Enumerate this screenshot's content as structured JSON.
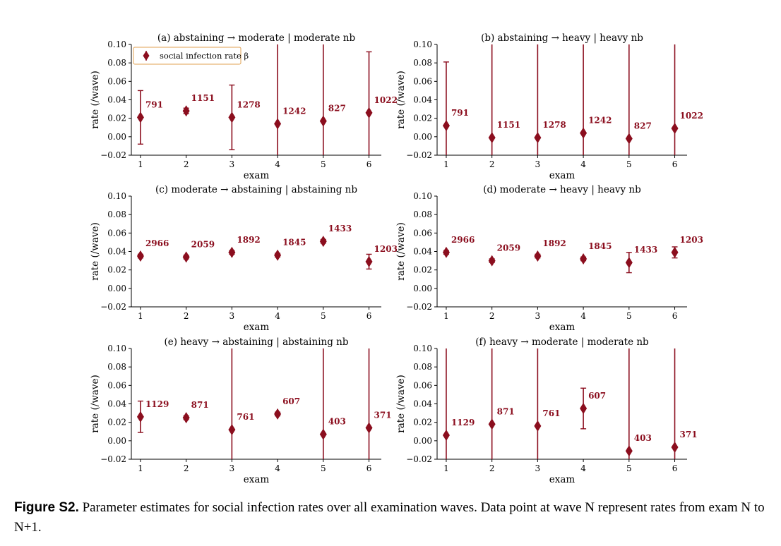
{
  "style": {
    "point_color": "#8b0e1e",
    "legend_border": "#e0a050"
  },
  "legend": {
    "label": "social infection rate β"
  },
  "caption": {
    "label": "Figure S2.",
    "text": "Parameter estimates for social infection rates over all examination waves. Data point at wave N represent rates from exam N to N+1."
  },
  "chart_data": [
    {
      "type": "scatter",
      "title": "(a) abstaining → moderate | moderate nb",
      "xlabel": "exam",
      "ylabel": "rate (/wave)",
      "ylim": [
        -0.02,
        0.1
      ],
      "yticks": [
        "−0.02",
        "0.00",
        "0.02",
        "0.04",
        "0.06",
        "0.08",
        "0.10"
      ],
      "xticks": [
        "1",
        "2",
        "3",
        "4",
        "5",
        "6"
      ],
      "x": [
        1,
        2,
        3,
        4,
        5,
        6
      ],
      "y": [
        0.021,
        0.028,
        0.021,
        0.014,
        0.017,
        0.026
      ],
      "err_low": [
        -0.008,
        0.025,
        -0.014,
        -0.02,
        -0.02,
        -0.02
      ],
      "err_high": [
        0.05,
        0.031,
        0.056,
        0.1,
        0.1,
        0.092
      ],
      "labels": [
        "791",
        "1151",
        "1278",
        "1242",
        "827",
        "1022"
      ],
      "legend": true
    },
    {
      "type": "scatter",
      "title": "(b) abstaining → heavy | heavy nb",
      "xlabel": "exam",
      "ylabel": "rate (/wave)",
      "ylim": [
        -0.02,
        0.1
      ],
      "yticks": [
        "−0.02",
        "0.00",
        "0.02",
        "0.04",
        "0.06",
        "0.08",
        "0.10"
      ],
      "xticks": [
        "1",
        "2",
        "3",
        "4",
        "5",
        "6"
      ],
      "x": [
        1,
        2,
        3,
        4,
        5,
        6
      ],
      "y": [
        0.012,
        -0.001,
        -0.001,
        0.004,
        -0.002,
        0.009
      ],
      "err_low": [
        -0.02,
        -0.02,
        -0.02,
        -0.02,
        -0.02,
        -0.02
      ],
      "err_high": [
        0.081,
        0.1,
        0.1,
        0.1,
        0.1,
        0.1
      ],
      "labels": [
        "791",
        "1151",
        "1278",
        "1242",
        "827",
        "1022"
      ]
    },
    {
      "type": "scatter",
      "title": "(c) moderate → abstaining | abstaining nb",
      "xlabel": "exam",
      "ylabel": "rate (/wave)",
      "ylim": [
        -0.02,
        0.1
      ],
      "yticks": [
        "−0.02",
        "0.00",
        "0.02",
        "0.04",
        "0.06",
        "0.08",
        "0.10"
      ],
      "xticks": [
        "1",
        "2",
        "3",
        "4",
        "5",
        "6"
      ],
      "x": [
        1,
        2,
        3,
        4,
        5,
        6
      ],
      "y": [
        0.035,
        0.034,
        0.039,
        0.036,
        0.051,
        0.029
      ],
      "err_low": [
        0.033,
        0.032,
        0.037,
        0.034,
        0.049,
        0.021
      ],
      "err_high": [
        0.037,
        0.036,
        0.041,
        0.038,
        0.053,
        0.037
      ],
      "labels": [
        "2966",
        "2059",
        "1892",
        "1845",
        "1433",
        "1203"
      ]
    },
    {
      "type": "scatter",
      "title": "(d) moderate → heavy | heavy nb",
      "xlabel": "exam",
      "ylabel": "rate (/wave)",
      "ylim": [
        -0.02,
        0.1
      ],
      "yticks": [
        "−0.02",
        "0.00",
        "0.02",
        "0.04",
        "0.06",
        "0.08",
        "0.10"
      ],
      "xticks": [
        "1",
        "2",
        "3",
        "4",
        "5",
        "6"
      ],
      "x": [
        1,
        2,
        3,
        4,
        5,
        6
      ],
      "y": [
        0.039,
        0.03,
        0.035,
        0.032,
        0.028,
        0.039
      ],
      "err_low": [
        0.037,
        0.028,
        0.033,
        0.03,
        0.017,
        0.033
      ],
      "err_high": [
        0.041,
        0.032,
        0.037,
        0.034,
        0.039,
        0.045
      ],
      "labels": [
        "2966",
        "2059",
        "1892",
        "1845",
        "1433",
        "1203"
      ]
    },
    {
      "type": "scatter",
      "title": "(e) heavy → abstaining | abstaining nb",
      "xlabel": "exam",
      "ylabel": "rate (/wave)",
      "ylim": [
        -0.02,
        0.1
      ],
      "yticks": [
        "−0.02",
        "0.00",
        "0.02",
        "0.04",
        "0.06",
        "0.08",
        "0.10"
      ],
      "xticks": [
        "1",
        "2",
        "3",
        "4",
        "5",
        "6"
      ],
      "x": [
        1,
        2,
        3,
        4,
        5,
        6
      ],
      "y": [
        0.026,
        0.025,
        0.012,
        0.029,
        0.007,
        0.014
      ],
      "err_low": [
        0.009,
        0.023,
        -0.02,
        0.027,
        -0.02,
        -0.02
      ],
      "err_high": [
        0.043,
        0.027,
        0.1,
        0.031,
        0.1,
        0.1
      ],
      "labels": [
        "1129",
        "871",
        "761",
        "607",
        "403",
        "371"
      ]
    },
    {
      "type": "scatter",
      "title": "(f) heavy → moderate | moderate nb",
      "xlabel": "exam",
      "ylabel": "rate (/wave)",
      "ylim": [
        -0.02,
        0.1
      ],
      "yticks": [
        "−0.02",
        "0.00",
        "0.02",
        "0.04",
        "0.06",
        "0.08",
        "0.10"
      ],
      "xticks": [
        "1",
        "2",
        "3",
        "4",
        "5",
        "6"
      ],
      "x": [
        1,
        2,
        3,
        4,
        5,
        6
      ],
      "y": [
        0.006,
        0.018,
        0.016,
        0.035,
        -0.011,
        -0.007
      ],
      "err_low": [
        -0.02,
        -0.02,
        -0.02,
        0.013,
        -0.02,
        -0.02
      ],
      "err_high": [
        0.1,
        0.1,
        0.1,
        0.057,
        0.1,
        0.1
      ],
      "labels": [
        "1129",
        "871",
        "761",
        "607",
        "403",
        "371"
      ]
    }
  ]
}
